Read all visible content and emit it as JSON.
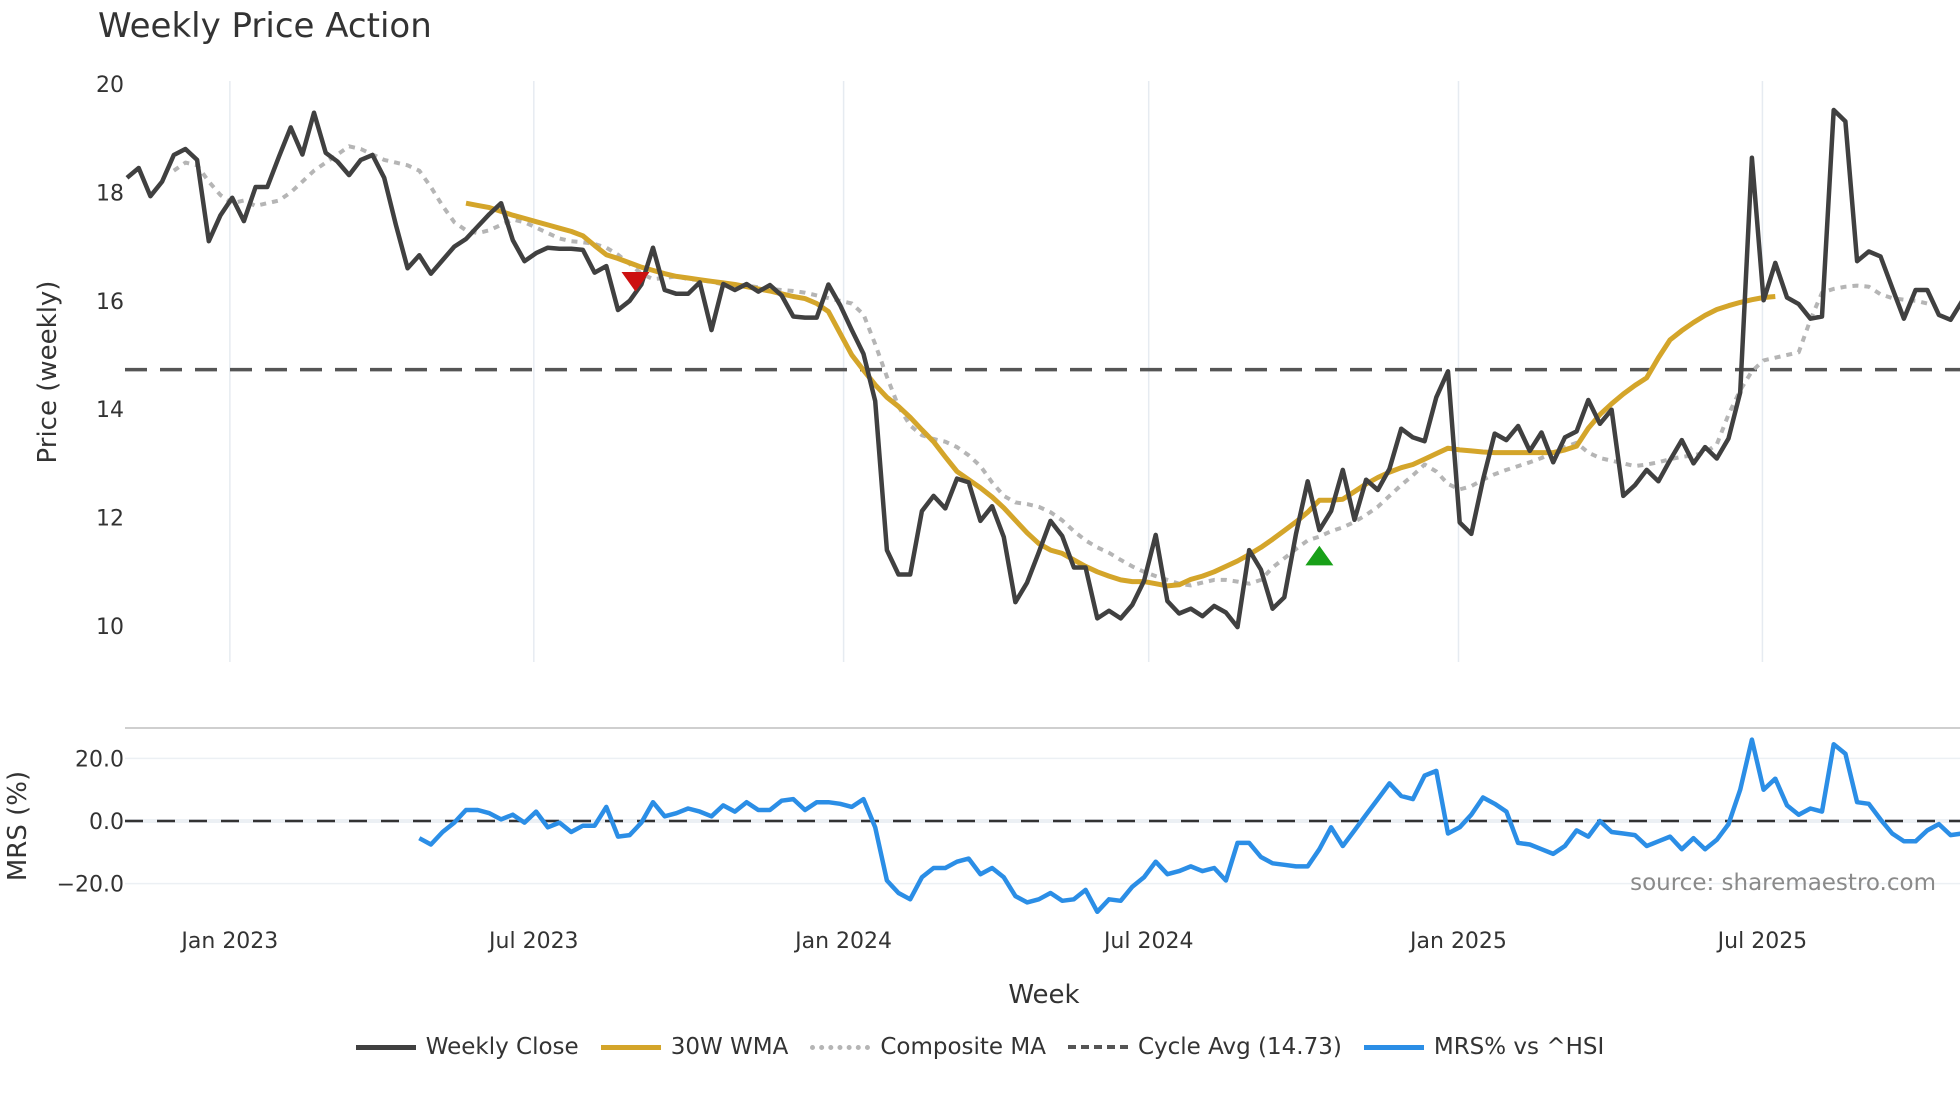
{
  "title": "Weekly Price Action",
  "source": "source: sharemaestro.com",
  "x_axis_title": "Week",
  "legend": [
    {
      "label": "Weekly Close",
      "color": "#404040",
      "style": "solid"
    },
    {
      "label": "30W WMA",
      "color": "#d4a52a",
      "style": "solid"
    },
    {
      "label": "Composite MA",
      "color": "#b5b5b5",
      "style": "dotted"
    },
    {
      "label": "Cycle Avg (14.73)",
      "color": "#555555",
      "style": "dashed"
    },
    {
      "label": "MRS% vs ^HSI",
      "color": "#2b8ee6",
      "style": "solid"
    }
  ],
  "chart_data": [
    {
      "type": "line",
      "title": "Weekly Price Action",
      "xlabel": "Week",
      "ylabel": "Price (weekly)",
      "ylim": [
        9.5,
        20.3
      ],
      "yticks": [
        10,
        12,
        14,
        16,
        18,
        20
      ],
      "xticks": [
        "Jan 2023",
        "Jul 2023",
        "Jan 2024",
        "Jul 2024",
        "Jan 2025",
        "Jul 2025"
      ],
      "xtick_index": [
        8.8,
        34.8,
        61.3,
        87.4,
        113.9,
        139.9
      ],
      "grid": "vertical",
      "cycle_avg": 14.73,
      "markers": [
        {
          "type": "sell",
          "shape": "triangle-down",
          "color": "#cc1111",
          "index": 43.5,
          "value": 16.35
        },
        {
          "type": "buy",
          "shape": "triangle-up",
          "color": "#18a018",
          "index": 102,
          "value": 11.3
        }
      ],
      "series": [
        {
          "name": "Weekly Close",
          "start_index": 0,
          "values": [
            18.27,
            18.45,
            17.93,
            18.2,
            18.69,
            18.8,
            18.6,
            17.1,
            17.58,
            17.9,
            17.47,
            18.1,
            18.1,
            18.66,
            19.2,
            18.7,
            19.47,
            18.73,
            18.57,
            18.32,
            18.6,
            18.69,
            18.27,
            17.4,
            16.6,
            16.84,
            16.5,
            16.75,
            17.0,
            17.14,
            17.37,
            17.6,
            17.8,
            17.12,
            16.73,
            16.88,
            16.98,
            16.96,
            16.96,
            16.94,
            16.52,
            16.64,
            15.83,
            16.0,
            16.3,
            16.98,
            16.2,
            16.13,
            16.13,
            16.34,
            15.46,
            16.31,
            16.2,
            16.31,
            16.17,
            16.29,
            16.1,
            15.71,
            15.69,
            15.69,
            16.3,
            15.92,
            15.46,
            15.02,
            14.15,
            11.4,
            10.95,
            10.95,
            12.12,
            12.4,
            12.17,
            12.72,
            12.65,
            11.94,
            12.21,
            11.64,
            10.44,
            10.8,
            11.36,
            11.94,
            11.66,
            11.08,
            11.08,
            10.14,
            10.28,
            10.14,
            10.39,
            10.83,
            11.68,
            10.46,
            10.23,
            10.32,
            10.18,
            10.37,
            10.25,
            9.98,
            11.4,
            11.04,
            10.32,
            10.53,
            11.7,
            12.67,
            11.77,
            12.12,
            12.88,
            11.96,
            12.7,
            12.51,
            12.9,
            13.64,
            13.48,
            13.41,
            14.22,
            14.7,
            11.91,
            11.7,
            12.7,
            13.55,
            13.43,
            13.69,
            13.23,
            13.57,
            13.02,
            13.48,
            13.59,
            14.17,
            13.73,
            13.99,
            12.4,
            12.6,
            12.88,
            12.67,
            13.06,
            13.43,
            13.0,
            13.3,
            13.09,
            13.46,
            14.31,
            18.64,
            16.01,
            16.7,
            16.06,
            15.94,
            15.67,
            15.71,
            19.52,
            19.31,
            16.73,
            16.91,
            16.82,
            16.24,
            15.67,
            16.2,
            16.2,
            15.74,
            15.65,
            16.0
          ]
        },
        {
          "name": "30W WMA",
          "start_index": 29,
          "values": [
            17.8,
            17.76,
            17.72,
            17.65,
            17.58,
            17.52,
            17.46,
            17.4,
            17.34,
            17.28,
            17.2,
            17.02,
            16.85,
            16.78,
            16.7,
            16.62,
            16.56,
            16.5,
            16.45,
            16.42,
            16.39,
            16.36,
            16.33,
            16.3,
            16.26,
            16.22,
            16.18,
            16.13,
            16.08,
            16.04,
            15.95,
            15.8,
            15.4,
            15.0,
            14.72,
            14.45,
            14.22,
            14.05,
            13.85,
            13.62,
            13.4,
            13.12,
            12.85,
            12.7,
            12.55,
            12.38,
            12.18,
            11.95,
            11.72,
            11.52,
            11.4,
            11.34,
            11.22,
            11.1,
            11.0,
            10.92,
            10.85,
            10.82,
            10.82,
            10.78,
            10.74,
            10.76,
            10.86,
            10.92,
            11.0,
            11.1,
            11.2,
            11.32,
            11.45,
            11.6,
            11.76,
            11.92,
            12.1,
            12.32,
            12.32,
            12.34,
            12.48,
            12.62,
            12.74,
            12.84,
            12.92,
            12.98,
            13.08,
            13.18,
            13.28,
            13.25,
            13.23,
            13.21,
            13.2,
            13.2,
            13.2,
            13.2,
            13.2,
            13.2,
            13.25,
            13.32,
            13.65,
            13.9,
            14.1,
            14.28,
            14.44,
            14.58,
            14.95,
            15.28,
            15.45,
            15.6,
            15.73,
            15.84,
            15.91,
            15.97,
            16.02,
            16.06,
            16.08
          ]
        },
        {
          "name": "Composite MA",
          "start_index": 4,
          "values": [
            18.4,
            18.55,
            18.5,
            18.2,
            17.95,
            17.8,
            17.85,
            17.75,
            17.8,
            17.85,
            18.0,
            18.2,
            18.4,
            18.55,
            18.7,
            18.85,
            18.8,
            18.7,
            18.6,
            18.55,
            18.5,
            18.4,
            18.1,
            17.75,
            17.45,
            17.3,
            17.25,
            17.3,
            17.4,
            17.5,
            17.45,
            17.35,
            17.25,
            17.15,
            17.1,
            17.08,
            17.05,
            16.98,
            16.85,
            16.68,
            16.5,
            16.4,
            16.42,
            16.45,
            16.4,
            16.38,
            16.35,
            16.3,
            16.3,
            16.28,
            16.25,
            16.22,
            16.2,
            16.18,
            16.15,
            16.1,
            16.05,
            16.0,
            15.95,
            15.75,
            15.2,
            14.6,
            14.05,
            13.7,
            13.52,
            13.45,
            13.4,
            13.3,
            13.15,
            12.95,
            12.65,
            12.4,
            12.28,
            12.25,
            12.2,
            12.1,
            11.95,
            11.75,
            11.58,
            11.45,
            11.35,
            11.22,
            11.1,
            11.0,
            10.92,
            10.85,
            10.78,
            10.75,
            10.8,
            10.85,
            10.85,
            10.82,
            10.78,
            10.85,
            11.08,
            11.25,
            11.42,
            11.58,
            11.65,
            11.75,
            11.82,
            11.92,
            12.05,
            12.2,
            12.4,
            12.6,
            12.78,
            12.98,
            12.85,
            12.62,
            12.52,
            12.58,
            12.7,
            12.8,
            12.88,
            12.95,
            13.02,
            13.1,
            13.2,
            13.3,
            13.38,
            13.2,
            13.1,
            13.05,
            13.0,
            12.95,
            12.98,
            13.02,
            13.08,
            13.12,
            13.15,
            13.2,
            13.35,
            13.9,
            14.35,
            14.7,
            14.9,
            14.95,
            15.0,
            15.05,
            15.65,
            16.15,
            16.22,
            16.26,
            16.28,
            16.26,
            16.12,
            16.05,
            16.02,
            16.0,
            15.95
          ]
        },
        {
          "name": "MRS% vs ^HSI",
          "start_index": 25,
          "panel": "mrs",
          "values": [
            -5.5,
            -7.5,
            -3.5,
            -0.5,
            3.5,
            3.5,
            2.5,
            0.5,
            2,
            -0.5,
            3,
            -2,
            -0.5,
            -3.5,
            -1.5,
            -1.5,
            4.5,
            -5,
            -4.5,
            -0.5,
            6,
            1.5,
            2.5,
            4,
            3,
            1.5,
            5,
            3,
            6,
            3.5,
            3.5,
            6.5,
            7,
            3.5,
            6,
            6,
            5.5,
            4.5,
            7,
            -2,
            -19,
            -23,
            -25,
            -18,
            -15,
            -15,
            -13,
            -12,
            -17,
            -15,
            -18,
            -24,
            -26,
            -25,
            -23,
            -25.5,
            -25,
            -22,
            -29,
            -25,
            -25.5,
            -21,
            -18,
            -13,
            -17,
            -16,
            -14.5,
            -16,
            -15,
            -19,
            -7,
            -7,
            -11.5,
            -13.5,
            -14,
            -14.5,
            -14.5,
            -9,
            -2,
            -8,
            -3,
            2,
            7,
            12,
            8,
            7,
            14.5,
            16,
            -4,
            -2,
            2,
            7.5,
            5.5,
            3,
            -7,
            -7.5,
            -9,
            -10.5,
            -8,
            -3,
            -5,
            0,
            -3.5,
            -4,
            -4.5,
            -8,
            -6.5,
            -5,
            -9,
            -5.5,
            -9,
            -6,
            -1,
            10,
            26,
            10,
            13.5,
            5,
            2,
            4,
            3,
            24.5,
            21.5,
            6,
            5.5,
            0.5,
            -4,
            -6.5,
            -6.5,
            -3,
            -1,
            -4.5,
            -4
          ]
        }
      ]
    },
    {
      "type": "line",
      "ylabel": "MRS (%)",
      "ylim": [
        -30,
        30
      ],
      "yticks": [
        -20.0,
        0.0,
        20.0
      ],
      "ytick_labels": [
        "−20.0",
        "0.0",
        "20.0"
      ],
      "zero_line": 0.0
    }
  ]
}
